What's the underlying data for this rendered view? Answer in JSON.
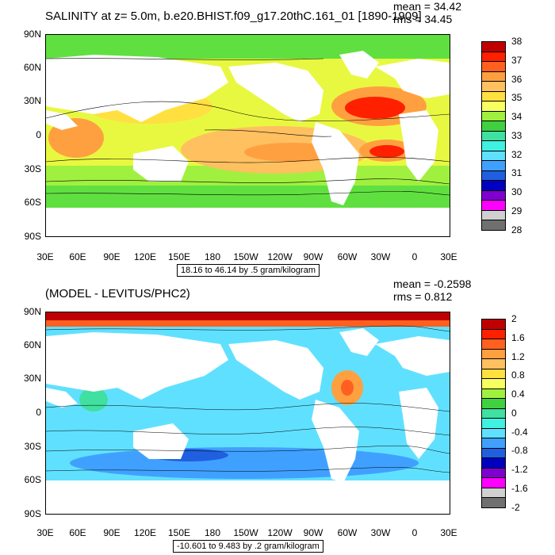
{
  "panel1": {
    "title": "SALINITY at z=    5.0m, b.e20.BHIST.f09_g17.20thC.161_01 [1890-1909]",
    "mean": "mean = 34.42",
    "rms": "rms = 34.45",
    "yticks": [
      "90N",
      "60N",
      "30N",
      "0",
      "30S",
      "60S",
      "90S"
    ],
    "xticks": [
      "30E",
      "60E",
      "90E",
      "120E",
      "150E",
      "180",
      "150W",
      "120W",
      "90W",
      "60W",
      "30W",
      "0",
      "30E"
    ],
    "range_note": "18.16 to 46.14 by .5 gram/kilogram",
    "colorbar": {
      "labels": [
        "38",
        "37",
        "36",
        "35",
        "34",
        "33",
        "32",
        "31",
        "30",
        "29",
        "28"
      ],
      "colors": [
        "#c00000",
        "#ff2000",
        "#ff6020",
        "#ffa040",
        "#ffc060",
        "#ffe040",
        "#f8ff60",
        "#a0f040",
        "#40d040",
        "#40e0a0",
        "#40f0e0",
        "#60e0ff",
        "#40a0ff",
        "#2060e0",
        "#0000c0",
        "#8000d0",
        "#ff00ff",
        "#d0d0d0",
        "#707070"
      ]
    }
  },
  "panel2": {
    "title": "(MODEL - LEVITUS/PHC2)",
    "mean": "mean = -0.2598",
    "rms": "rms = 0.812",
    "yticks": [
      "90N",
      "60N",
      "30N",
      "0",
      "30S",
      "60S",
      "90S"
    ],
    "xticks": [
      "30E",
      "60E",
      "90E",
      "120E",
      "150E",
      "180",
      "150W",
      "120W",
      "90W",
      "60W",
      "30W",
      "0",
      "30E"
    ],
    "range_note": "-10.601 to 9.483 by .2 gram/kilogram",
    "colorbar": {
      "labels": [
        "2",
        "1.6",
        "1.2",
        "0.8",
        "0.4",
        "0",
        "-0.4",
        "-0.8",
        "-1.2",
        "-1.6",
        "-2"
      ],
      "colors": [
        "#c00000",
        "#ff2000",
        "#ff6020",
        "#ffa040",
        "#ffc060",
        "#ffe040",
        "#f8ff60",
        "#a0f040",
        "#40d040",
        "#40e0a0",
        "#40f0e0",
        "#60e0ff",
        "#40a0ff",
        "#2060e0",
        "#0000c0",
        "#8000d0",
        "#ff00ff",
        "#d0d0d0",
        "#707070"
      ]
    }
  }
}
